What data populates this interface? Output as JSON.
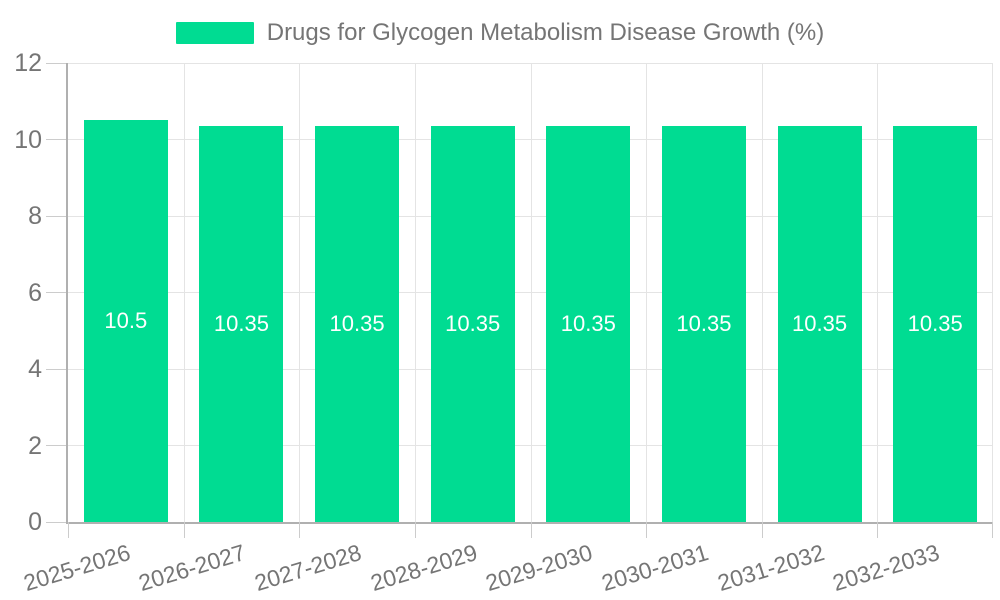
{
  "legend": {
    "items": [
      {
        "label": "Drugs for Glycogen Metabolism Disease Growth (%)",
        "color": "#00DC92"
      }
    ],
    "position": "top"
  },
  "chart_data": {
    "type": "bar",
    "title": "",
    "xlabel": "",
    "ylabel": "",
    "categories": [
      "2025-2026",
      "2026-2027",
      "2027-2028",
      "2028-2029",
      "2029-2030",
      "2030-2031",
      "2031-2032",
      "2032-2033"
    ],
    "series": [
      {
        "name": "Drugs for Glycogen Metabolism Disease Growth (%)",
        "values": [
          10.5,
          10.35,
          10.35,
          10.35,
          10.35,
          10.35,
          10.35,
          10.35
        ],
        "data_labels": [
          "10.5",
          "10.35",
          "10.35",
          "10.35",
          "10.35",
          "10.35",
          "10.35",
          "10.35"
        ],
        "color": "#00DC92"
      }
    ],
    "ylim": [
      0,
      12
    ],
    "yticks": [
      0,
      2,
      4,
      6,
      8,
      10,
      12
    ],
    "grid": true,
    "legend_position": "top",
    "x_label_rotation_deg": -17,
    "data_label_position": "inside-center",
    "data_label_color": "#ffffff"
  },
  "style": {
    "background": "#ffffff",
    "bar_color": "#00DC92",
    "axis_line_color": "#b0b0b0",
    "grid_color": "#e4e4e4",
    "tick_color": "#cccccc",
    "text_color": "#757575"
  }
}
